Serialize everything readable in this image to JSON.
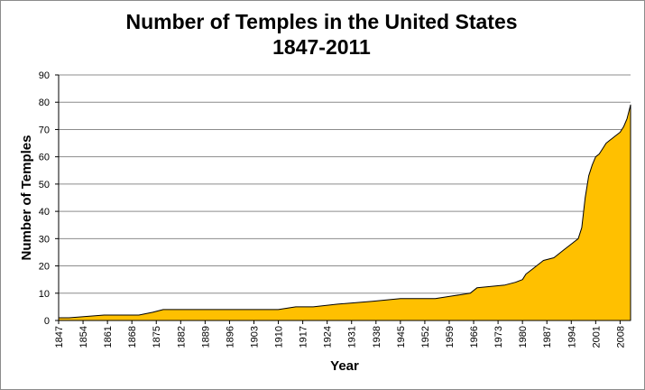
{
  "chart_data": {
    "type": "area",
    "title": "Number of Temples in the United States",
    "subtitle": "1847-2011",
    "xlabel": "Year",
    "ylabel": "Number of Temples",
    "xlim": [
      1847,
      2011
    ],
    "ylim": [
      0,
      90
    ],
    "y_ticks": [
      0,
      10,
      20,
      30,
      40,
      50,
      60,
      70,
      80,
      90
    ],
    "x_ticks": [
      1847,
      1854,
      1861,
      1868,
      1875,
      1882,
      1889,
      1896,
      1903,
      1910,
      1917,
      1924,
      1931,
      1938,
      1945,
      1952,
      1959,
      1966,
      1973,
      1980,
      1987,
      1994,
      2001,
      2008
    ],
    "grid": true,
    "legend": "none",
    "fill_color": "#FFC000",
    "series": [
      {
        "x": [
          1847,
          1850,
          1860,
          1870,
          1874,
          1877,
          1885,
          1893,
          1900,
          1910,
          1915,
          1920,
          1927,
          1937,
          1945,
          1955,
          1960,
          1965,
          1967,
          1975,
          1978,
          1980,
          1981,
          1983,
          1984,
          1986,
          1989,
          1990,
          1992,
          1993,
          1995,
          1996,
          1997,
          1998,
          1999,
          2000,
          2001,
          2002,
          2003,
          2004,
          2005,
          2006,
          2007,
          2008,
          2009,
          2010,
          2011
        ],
        "y": [
          1,
          1,
          2,
          2,
          3,
          4,
          4,
          4,
          4,
          4,
          5,
          5,
          6,
          7,
          8,
          8,
          9,
          10,
          12,
          13,
          14,
          15,
          17,
          19,
          20,
          22,
          23,
          24,
          26,
          27,
          29,
          30,
          34,
          45,
          53,
          57,
          60,
          61,
          63,
          65,
          66,
          67,
          68,
          69,
          71,
          74,
          79
        ]
      }
    ]
  }
}
